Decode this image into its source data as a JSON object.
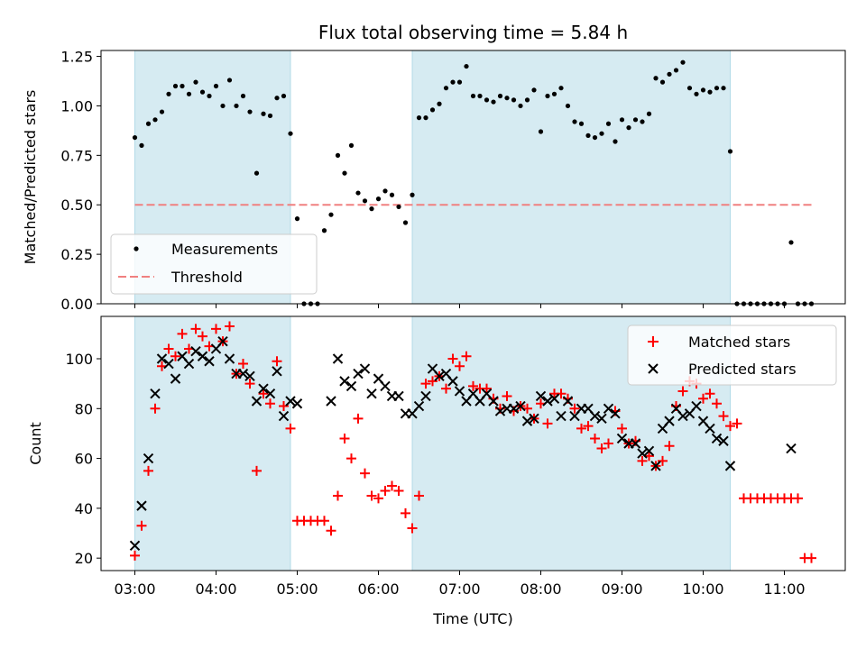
{
  "chart_data": [
    {
      "type": "scatter",
      "title": "Flux total observing time = 5.84 h",
      "xlabel": "",
      "ylabel": "Matched/Predicted stars",
      "xlim": [
        "02:35",
        "11:45"
      ],
      "ylim": [
        0,
        1.28
      ],
      "yticks": [
        "0.00",
        "0.25",
        "0.50",
        "0.75",
        "1.00",
        "1.25"
      ],
      "ytick_values": [
        0,
        0.25,
        0.5,
        0.75,
        1.0,
        1.25
      ],
      "shaded_intervals": [
        [
          "03:00",
          "04:55"
        ],
        [
          "06:25",
          "10:20"
        ]
      ],
      "legend": {
        "location": "lower left",
        "entries": [
          "Measurements",
          "Threshold"
        ]
      },
      "threshold": {
        "name": "Threshold",
        "value": 0.5,
        "x_from": "03:00",
        "x_to": "11:20",
        "color": "#f08080"
      },
      "series": [
        {
          "name": "Measurements",
          "color": "#000000",
          "x": [
            "03:00",
            "03:05",
            "03:10",
            "03:15",
            "03:20",
            "03:25",
            "03:30",
            "03:35",
            "03:40",
            "03:45",
            "03:50",
            "03:55",
            "04:00",
            "04:05",
            "04:10",
            "04:15",
            "04:20",
            "04:25",
            "04:30",
            "04:35",
            "04:40",
            "04:45",
            "04:50",
            "04:55",
            "05:00",
            "05:05",
            "05:10",
            "05:15",
            "05:20",
            "05:25",
            "05:30",
            "05:35",
            "05:40",
            "05:45",
            "05:50",
            "05:55",
            "06:00",
            "06:05",
            "06:10",
            "06:15",
            "06:20",
            "06:25",
            "06:30",
            "06:35",
            "06:40",
            "06:45",
            "06:50",
            "06:55",
            "07:00",
            "07:05",
            "07:10",
            "07:15",
            "07:20",
            "07:25",
            "07:30",
            "07:35",
            "07:40",
            "07:45",
            "07:50",
            "07:55",
            "08:00",
            "08:05",
            "08:10",
            "08:15",
            "08:20",
            "08:25",
            "08:30",
            "08:35",
            "08:40",
            "08:45",
            "08:50",
            "08:55",
            "09:00",
            "09:05",
            "09:10",
            "09:15",
            "09:20",
            "09:25",
            "09:30",
            "09:35",
            "09:40",
            "09:45",
            "09:50",
            "09:55",
            "10:00",
            "10:05",
            "10:10",
            "10:15",
            "10:20",
            "10:25",
            "10:30",
            "10:35",
            "10:40",
            "10:45",
            "10:50",
            "10:55",
            "11:00",
            "11:05",
            "11:10",
            "11:15",
            "11:20"
          ],
          "y": [
            0.84,
            0.8,
            0.91,
            0.93,
            0.97,
            1.06,
            1.1,
            1.1,
            1.06,
            1.12,
            1.07,
            1.05,
            1.1,
            1.0,
            1.13,
            1.0,
            1.05,
            0.97,
            0.66,
            0.96,
            0.95,
            1.04,
            1.05,
            0.86,
            0.43,
            0.0,
            0.0,
            0.0,
            0.37,
            0.45,
            0.75,
            0.66,
            0.8,
            0.56,
            0.52,
            0.48,
            0.53,
            0.57,
            0.55,
            0.49,
            0.41,
            0.55,
            0.94,
            0.94,
            0.98,
            1.01,
            1.09,
            1.12,
            1.12,
            1.2,
            1.05,
            1.05,
            1.03,
            1.02,
            1.05,
            1.04,
            1.03,
            1.0,
            1.03,
            1.08,
            0.87,
            1.05,
            1.06,
            1.09,
            1.0,
            0.92,
            0.91,
            0.85,
            0.84,
            0.86,
            0.91,
            0.82,
            0.93,
            0.89,
            0.93,
            0.92,
            0.96,
            1.14,
            1.12,
            1.16,
            1.18,
            1.22,
            1.09,
            1.06,
            1.08,
            1.07,
            1.09,
            1.09,
            0.77,
            0.0,
            0.0,
            0.0,
            0.0,
            0.0,
            0.0,
            0.0,
            0.0,
            0.31,
            0.0,
            0.0,
            0.0
          ]
        }
      ]
    },
    {
      "type": "scatter",
      "title": "",
      "xlabel": "Time (UTC)",
      "ylabel": "Count",
      "xlim": [
        "02:35",
        "11:45"
      ],
      "ylim": [
        15,
        117
      ],
      "xticks": [
        "03:00",
        "04:00",
        "05:00",
        "06:00",
        "07:00",
        "08:00",
        "09:00",
        "10:00",
        "11:00"
      ],
      "yticks": [
        "20",
        "40",
        "60",
        "80",
        "100"
      ],
      "ytick_values": [
        20,
        40,
        60,
        80,
        100
      ],
      "shaded_intervals": [
        [
          "03:00",
          "04:55"
        ],
        [
          "06:25",
          "10:20"
        ]
      ],
      "legend": {
        "location": "upper right",
        "entries": [
          "Matched stars",
          "Predicted stars"
        ]
      },
      "series": [
        {
          "name": "Matched stars",
          "color": "#ff0000",
          "marker": "+",
          "x": [
            "03:00",
            "03:05",
            "03:10",
            "03:15",
            "03:20",
            "03:25",
            "03:30",
            "03:35",
            "03:40",
            "03:45",
            "03:50",
            "03:55",
            "04:00",
            "04:05",
            "04:10",
            "04:15",
            "04:20",
            "04:25",
            "04:30",
            "04:35",
            "04:40",
            "04:45",
            "04:50",
            "04:55",
            "05:00",
            "05:05",
            "05:10",
            "05:15",
            "05:20",
            "05:25",
            "05:30",
            "05:35",
            "05:40",
            "05:45",
            "05:50",
            "05:55",
            "06:00",
            "06:05",
            "06:10",
            "06:15",
            "06:20",
            "06:25",
            "06:30",
            "06:35",
            "06:40",
            "06:45",
            "06:50",
            "06:55",
            "07:00",
            "07:05",
            "07:10",
            "07:15",
            "07:20",
            "07:25",
            "07:30",
            "07:35",
            "07:40",
            "07:45",
            "07:50",
            "07:55",
            "08:00",
            "08:05",
            "08:10",
            "08:15",
            "08:20",
            "08:25",
            "08:30",
            "08:35",
            "08:40",
            "08:45",
            "08:50",
            "08:55",
            "09:00",
            "09:05",
            "09:10",
            "09:15",
            "09:20",
            "09:25",
            "09:30",
            "09:35",
            "09:40",
            "09:45",
            "09:50",
            "09:55",
            "10:00",
            "10:05",
            "10:10",
            "10:15",
            "10:20",
            "10:25",
            "10:30",
            "10:35",
            "10:40",
            "10:45",
            "10:50",
            "10:55",
            "11:00",
            "11:05",
            "11:10",
            "11:15",
            "11:20"
          ],
          "y": [
            21,
            33,
            55,
            80,
            97,
            104,
            101,
            110,
            104,
            112,
            109,
            105,
            112,
            107,
            113,
            94,
            98,
            90,
            55,
            86,
            82,
            99,
            81,
            72,
            35,
            35,
            35,
            35,
            35,
            31,
            45,
            68,
            60,
            76,
            54,
            45,
            44,
            47,
            49,
            47,
            38,
            32,
            45,
            90,
            91,
            93,
            88,
            100,
            97,
            101,
            89,
            88,
            88,
            84,
            80,
            85,
            79,
            81,
            80,
            76,
            82,
            74,
            86,
            86,
            84,
            80,
            72,
            73,
            68,
            64,
            66,
            79,
            72,
            66,
            67,
            59,
            61,
            57,
            59,
            65,
            81,
            87,
            91,
            90,
            84,
            86,
            82,
            77,
            73,
            74,
            44,
            44,
            44,
            44,
            44,
            44,
            44,
            44,
            44,
            20,
            20
          ]
        },
        {
          "name": "Predicted stars",
          "color": "#000000",
          "marker": "x",
          "x": [
            "03:00",
            "03:05",
            "03:10",
            "03:15",
            "03:20",
            "03:25",
            "03:30",
            "03:35",
            "03:40",
            "03:45",
            "03:50",
            "03:55",
            "04:00",
            "04:05",
            "04:10",
            "04:15",
            "04:20",
            "04:25",
            "04:30",
            "04:35",
            "04:40",
            "04:45",
            "04:50",
            "04:55",
            "05:00",
            "05:25",
            "05:30",
            "05:35",
            "05:40",
            "05:45",
            "05:50",
            "05:55",
            "06:00",
            "06:05",
            "06:10",
            "06:15",
            "06:20",
            "06:25",
            "06:30",
            "06:35",
            "06:40",
            "06:45",
            "06:50",
            "06:55",
            "07:00",
            "07:05",
            "07:10",
            "07:15",
            "07:20",
            "07:25",
            "07:30",
            "07:35",
            "07:40",
            "07:45",
            "07:50",
            "07:55",
            "08:00",
            "08:05",
            "08:10",
            "08:15",
            "08:20",
            "08:25",
            "08:30",
            "08:35",
            "08:40",
            "08:45",
            "08:50",
            "08:55",
            "09:00",
            "09:05",
            "09:10",
            "09:15",
            "09:20",
            "09:25",
            "09:30",
            "09:35",
            "09:40",
            "09:45",
            "09:50",
            "09:55",
            "10:00",
            "10:05",
            "10:10",
            "10:15",
            "10:20",
            "11:05"
          ],
          "y": [
            25,
            41,
            60,
            86,
            100,
            98,
            92,
            101,
            98,
            103,
            101,
            99,
            104,
            107,
            100,
            94,
            94,
            93,
            83,
            88,
            86,
            95,
            77,
            83,
            82,
            83,
            100,
            91,
            89,
            94,
            96,
            86,
            92,
            89,
            85,
            85,
            78,
            78,
            81,
            85,
            96,
            93,
            94,
            91,
            87,
            83,
            86,
            83,
            86,
            83,
            79,
            80,
            80,
            81,
            75,
            76,
            85,
            83,
            84,
            77,
            83,
            77,
            80,
            80,
            77,
            76,
            80,
            78,
            68,
            66,
            66,
            62,
            63,
            57,
            72,
            75,
            80,
            77,
            78,
            81,
            75,
            72,
            68,
            67,
            57,
            64
          ]
        }
      ]
    }
  ]
}
